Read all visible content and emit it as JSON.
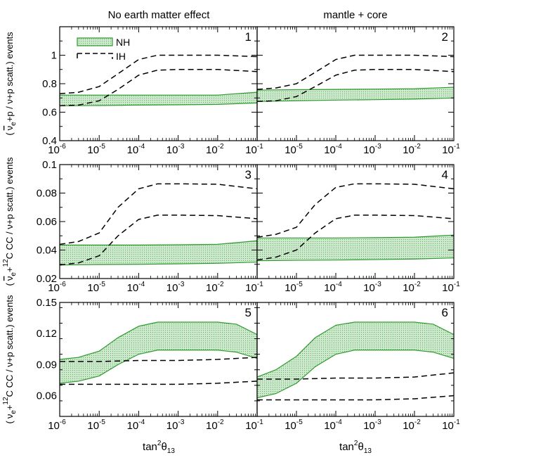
{
  "chart_data": {
    "type": "area",
    "column_titles": [
      "No earth matter effect",
      "mantle + core"
    ],
    "x_label": {
      "base": "tan",
      "sup": "2",
      "sym": "θ",
      "sub": "13"
    },
    "x_scale": "log",
    "x_range": [
      1e-06,
      0.1
    ],
    "x_ticks": [
      {
        "v": 1e-06,
        "e": "-6"
      },
      {
        "v": 1e-05,
        "e": "-5"
      },
      {
        "v": 0.0001,
        "e": "-4"
      },
      {
        "v": 0.001,
        "e": "-3"
      },
      {
        "v": 0.01,
        "e": "-2"
      },
      {
        "v": 0.1,
        "e": "-1"
      }
    ],
    "legend": {
      "placement": "top-left of panel 1",
      "nh": "NH",
      "ih": "IH"
    },
    "colors": {
      "nh_fill": "#cfe8cf",
      "nh_edge": "#2e9a2e",
      "nh_dots": "#5cb85c",
      "ih": "#000000"
    },
    "rows": [
      {
        "ylabel": {
          "open": "(",
          "nu": "ν",
          "bar": true,
          "sub": "e",
          "mid": "+p / ν+p scatt.) events",
          "pre": ""
        },
        "ylim": [
          0.4,
          1.2
        ],
        "yticks": [
          {
            "v": 0.4,
            "t": "0.4"
          },
          {
            "v": 0.6,
            "t": "0.6"
          },
          {
            "v": 0.8,
            "t": "0.8"
          },
          {
            "v": 1.0,
            "t": "1"
          }
        ],
        "panels": [
          {
            "label": "1",
            "nh_band": {
              "x": [
                1e-06,
                1e-05,
                0.0001,
                0.001,
                0.01,
                0.1
              ],
              "lower": [
                0.645,
                0.647,
                0.65,
                0.652,
                0.655,
                0.665
              ],
              "upper": [
                0.72,
                0.72,
                0.72,
                0.72,
                0.72,
                0.74
              ]
            },
            "ih_lines": [
              {
                "x": [
                  1e-06,
                  3e-06,
                  1e-05,
                  3e-05,
                  0.0001,
                  0.0003,
                  0.001,
                  0.01,
                  0.1
                ],
                "y": [
                  0.73,
                  0.74,
                  0.78,
                  0.87,
                  0.97,
                  1.0,
                  1.0,
                  1.0,
                  0.99
                ]
              },
              {
                "x": [
                  1e-06,
                  3e-06,
                  1e-05,
                  3e-05,
                  0.0001,
                  0.0003,
                  0.001,
                  0.01,
                  0.1
                ],
                "y": [
                  0.645,
                  0.65,
                  0.68,
                  0.76,
                  0.86,
                  0.895,
                  0.9,
                  0.9,
                  0.885
                ]
              }
            ]
          },
          {
            "label": "2",
            "nh_band": {
              "x": [
                1e-06,
                1e-05,
                0.0001,
                0.001,
                0.01,
                0.1
              ],
              "lower": [
                0.675,
                0.68,
                0.685,
                0.688,
                0.692,
                0.7
              ],
              "upper": [
                0.755,
                0.758,
                0.76,
                0.762,
                0.765,
                0.775
              ]
            },
            "ih_lines": [
              {
                "x": [
                  1e-06,
                  3e-06,
                  1e-05,
                  3e-05,
                  0.0001,
                  0.0003,
                  0.001,
                  0.01,
                  0.1
                ],
                "y": [
                  0.76,
                  0.77,
                  0.8,
                  0.88,
                  0.97,
                  1.0,
                  1.0,
                  1.0,
                  0.99
                ]
              },
              {
                "x": [
                  1e-06,
                  3e-06,
                  1e-05,
                  3e-05,
                  0.0001,
                  0.0003,
                  0.001,
                  0.01,
                  0.1
                ],
                "y": [
                  0.675,
                  0.68,
                  0.71,
                  0.78,
                  0.86,
                  0.895,
                  0.9,
                  0.9,
                  0.885
                ]
              }
            ]
          }
        ]
      },
      {
        "ylabel": {
          "open": "(",
          "nu": "ν",
          "bar": true,
          "sub": "e",
          "mid": "+",
          "sup2": "12",
          "tail": "C CC / ν+p scatt.) events",
          "pre": ""
        },
        "ylim": [
          0.02,
          0.1
        ],
        "yticks": [
          {
            "v": 0.02,
            "t": "0.02"
          },
          {
            "v": 0.04,
            "t": "0.04"
          },
          {
            "v": 0.06,
            "t": "0.06"
          },
          {
            "v": 0.08,
            "t": "0.08"
          },
          {
            "v": 0.1,
            "t": "0.1"
          }
        ],
        "panels": [
          {
            "label": "3",
            "nh_band": {
              "x": [
                1e-06,
                1e-05,
                0.0001,
                0.001,
                0.01,
                0.1
              ],
              "lower": [
                0.0295,
                0.0298,
                0.03,
                0.0303,
                0.0307,
                0.0315
              ],
              "upper": [
                0.0435,
                0.0435,
                0.0435,
                0.0437,
                0.044,
                0.0465
              ]
            },
            "ih_lines": [
              {
                "x": [
                  1e-06,
                  3e-06,
                  1e-05,
                  3e-05,
                  0.0001,
                  0.0003,
                  0.001,
                  0.01,
                  0.1
                ],
                "y": [
                  0.044,
                  0.046,
                  0.052,
                  0.07,
                  0.083,
                  0.0865,
                  0.0865,
                  0.0862,
                  0.083
                ]
              },
              {
                "x": [
                  1e-06,
                  3e-06,
                  1e-05,
                  3e-05,
                  0.0001,
                  0.0003,
                  0.001,
                  0.01,
                  0.1
                ],
                "y": [
                  0.0295,
                  0.031,
                  0.036,
                  0.05,
                  0.0615,
                  0.0645,
                  0.0645,
                  0.0642,
                  0.062
                ]
              }
            ]
          },
          {
            "label": "4",
            "nh_band": {
              "x": [
                1e-06,
                1e-05,
                0.0001,
                0.001,
                0.01,
                0.1
              ],
              "lower": [
                0.0325,
                0.0328,
                0.033,
                0.0333,
                0.0337,
                0.0345
              ],
              "upper": [
                0.0485,
                0.0485,
                0.0485,
                0.0487,
                0.049,
                0.0505
              ]
            },
            "ih_lines": [
              {
                "x": [
                  1e-06,
                  3e-06,
                  1e-05,
                  3e-05,
                  0.0001,
                  0.0003,
                  0.001,
                  0.01,
                  0.1
                ],
                "y": [
                  0.049,
                  0.051,
                  0.056,
                  0.072,
                  0.084,
                  0.0865,
                  0.0865,
                  0.0862,
                  0.083
                ]
              },
              {
                "x": [
                  1e-06,
                  3e-06,
                  1e-05,
                  3e-05,
                  0.0001,
                  0.0003,
                  0.001,
                  0.01,
                  0.1
                ],
                "y": [
                  0.033,
                  0.035,
                  0.04,
                  0.052,
                  0.062,
                  0.0645,
                  0.0645,
                  0.0642,
                  0.062
                ]
              }
            ]
          }
        ]
      },
      {
        "ylabel": {
          "open": "(",
          "nu": "ν",
          "bar": false,
          "sub": "e",
          "mid": "+",
          "sup2": "12",
          "tail": "C CC / ν+p scatt.) events",
          "pre": ""
        },
        "ylim": [
          0.04,
          0.15
        ],
        "yticks": [
          {
            "v": 0.06,
            "t": "0.06"
          },
          {
            "v": 0.09,
            "t": "0.09"
          },
          {
            "v": 0.12,
            "t": "0.12"
          },
          {
            "v": 0.15,
            "t": "0.15"
          }
        ],
        "panels": [
          {
            "label": "5",
            "nh_band": {
              "x": [
                1e-06,
                3e-06,
                1e-05,
                3e-05,
                0.0001,
                0.0003,
                0.001,
                0.01,
                0.03,
                0.1
              ],
              "lower": [
                0.072,
                0.074,
                0.079,
                0.09,
                0.1,
                0.104,
                0.104,
                0.104,
                0.102,
                0.096
              ],
              "upper": [
                0.095,
                0.097,
                0.103,
                0.116,
                0.127,
                0.131,
                0.131,
                0.131,
                0.129,
                0.119
              ]
            },
            "ih_lines": [
              {
                "x": [
                  1e-06,
                  1e-05,
                  0.0001,
                  0.001,
                  0.01,
                  0.1
                ],
                "y": [
                  0.093,
                  0.093,
                  0.094,
                  0.094,
                  0.095,
                  0.097
                ]
              },
              {
                "x": [
                  1e-06,
                  1e-05,
                  0.0001,
                  0.001,
                  0.01,
                  0.1
                ],
                "y": [
                  0.071,
                  0.071,
                  0.071,
                  0.071,
                  0.072,
                  0.074
                ]
              }
            ]
          },
          {
            "label": "6",
            "nh_band": {
              "x": [
                1e-06,
                3e-06,
                1e-05,
                3e-05,
                0.0001,
                0.0003,
                0.001,
                0.01,
                0.03,
                0.1
              ],
              "lower": [
                0.058,
                0.062,
                0.072,
                0.088,
                0.1,
                0.104,
                0.104,
                0.104,
                0.102,
                0.096
              ],
              "upper": [
                0.078,
                0.085,
                0.098,
                0.116,
                0.128,
                0.131,
                0.131,
                0.131,
                0.129,
                0.119
              ]
            },
            "ih_lines": [
              {
                "x": [
                  1e-06,
                  1e-05,
                  0.0001,
                  0.001,
                  0.01,
                  0.1
                ],
                "y": [
                  0.076,
                  0.076,
                  0.077,
                  0.077,
                  0.078,
                  0.082
                ]
              },
              {
                "x": [
                  1e-06,
                  1e-05,
                  0.0001,
                  0.001,
                  0.01,
                  0.1
                ],
                "y": [
                  0.056,
                  0.056,
                  0.056,
                  0.056,
                  0.057,
                  0.06
                ]
              }
            ]
          }
        ]
      }
    ]
  }
}
